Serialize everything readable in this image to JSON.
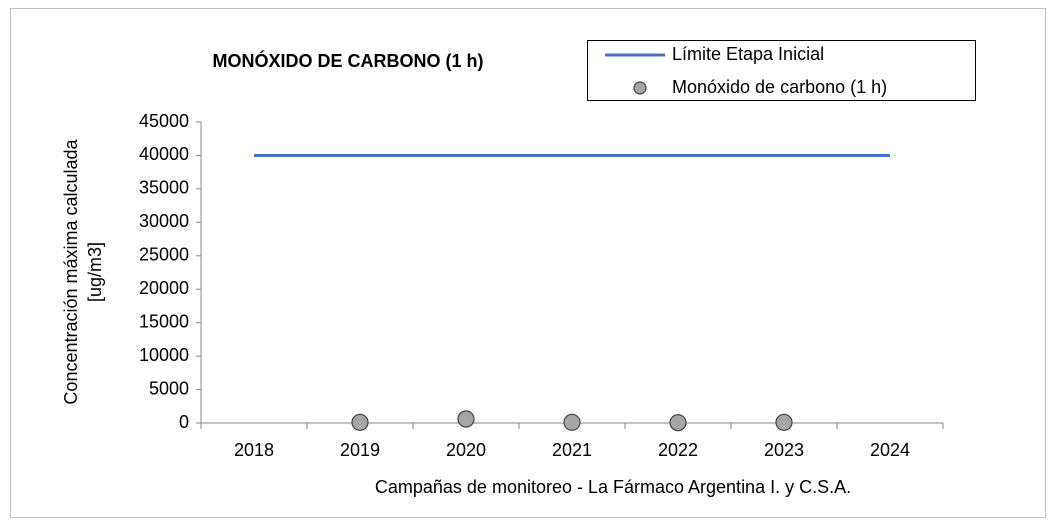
{
  "chart_data": {
    "type": "line",
    "title": "MONÓXIDO DE CARBONO (1 h)",
    "x_label": "Campañas de monitoreo - La Fármaco Argentina I. y C.S.A.",
    "y_label": [
      "Concentración máxima calculada",
      "[ug/m3]"
    ],
    "categories": [
      "2018",
      "2019",
      "2020",
      "2021",
      "2022",
      "2023",
      "2024"
    ],
    "series": [
      {
        "name": "Límite Etapa Inicial",
        "color": "#4472c4",
        "mode": "line",
        "values": [
          40000,
          40000,
          40000,
          40000,
          40000,
          40000,
          40000
        ]
      },
      {
        "name": "Monóxido de carbono (1 h)",
        "color": "#a6a6a6",
        "mode": "markers",
        "values": [
          null,
          100,
          600,
          100,
          50,
          100,
          null
        ]
      }
    ],
    "ylim": [
      0,
      45000
    ],
    "yticks": [
      0,
      5000,
      10000,
      15000,
      20000,
      25000,
      30000,
      35000,
      40000,
      45000
    ],
    "grid": false
  }
}
